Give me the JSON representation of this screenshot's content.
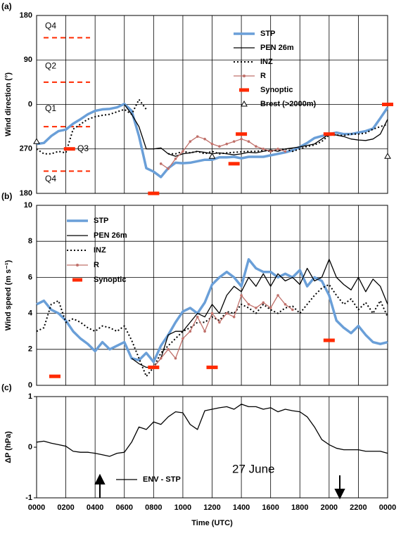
{
  "chart_data": [
    {
      "type": "line",
      "panel_label": "(a)",
      "ylabel": "Wind direction (°)",
      "ylim": [
        -180,
        180
      ],
      "yticks": [
        180,
        90,
        0,
        {
          "value": -90,
          "label": "270"
        },
        {
          "value": -180,
          "label": "180"
        }
      ],
      "hgrid": true,
      "legend": "top-right",
      "quadrants": {
        "color": "#ff2a00",
        "lines": [
          135,
          45,
          -45,
          -135
        ],
        "labels": [
          {
            "text": "Q4",
            "value": 158
          },
          {
            "text": "Q2",
            "value": 77
          },
          {
            "text": "Q1",
            "value": -9
          },
          {
            "text": "Q3",
            "value": -90
          },
          {
            "text": "Q4",
            "value": -151
          }
        ]
      },
      "series": [
        {
          "name": "STP",
          "color": "#6a9fd8",
          "width": 3.5,
          "dash": "solid",
          "x": [
            0,
            0.5,
            1,
            1.5,
            2,
            2.5,
            3,
            3.5,
            4,
            4.5,
            5,
            5.5,
            6,
            6.5,
            7,
            7.5,
            8,
            8.5,
            9,
            9.5,
            10,
            10.5,
            11,
            11.5,
            12,
            12.5,
            13,
            13.5,
            14,
            14.5,
            15,
            15.5,
            16,
            16.5,
            17,
            17.5,
            18,
            18.5,
            19,
            19.5,
            20,
            20.5,
            21,
            21.5,
            22,
            22.5,
            23,
            23.5,
            24
          ],
          "values": [
            -80,
            -78,
            -64,
            -54,
            -51,
            -39,
            -30,
            -20,
            -13,
            -10,
            -9,
            -6,
            1,
            -13,
            -64,
            -129,
            -136,
            -147,
            -129,
            -118,
            -119,
            -118,
            -115,
            -112,
            -112,
            -107,
            -107,
            -106,
            -109,
            -106,
            -106,
            -106,
            -103,
            -100,
            -97,
            -93,
            -86,
            -78,
            -68,
            -64,
            -60,
            -57,
            -60,
            -60,
            -57,
            -54,
            -49,
            -28,
            -6
          ]
        },
        {
          "name": "PEN 26m",
          "color": "#000000",
          "width": 1.3,
          "dash": "solid",
          "x": [
            6,
            6.5,
            7,
            7.5,
            8,
            8.5,
            9,
            9.5,
            10,
            10.5,
            11,
            11.5,
            12,
            12.5,
            13,
            13.5,
            14,
            14.5,
            15,
            15.5,
            16,
            16.5,
            17,
            17.5,
            18,
            18.5,
            19,
            19.5,
            20,
            20.5,
            21,
            21.5,
            22,
            22.5,
            23,
            23.5,
            24
          ],
          "values": [
            0,
            -20,
            -45,
            -90,
            -90,
            -88,
            -100,
            -105,
            -100,
            -98,
            -95,
            -97,
            -100,
            -98,
            -100,
            -102,
            -100,
            -97,
            -98,
            -95,
            -92,
            -95,
            -90,
            -88,
            -86,
            -83,
            -80,
            -70,
            -60,
            -62,
            -65,
            -70,
            -72,
            -73,
            -70,
            -60,
            -30
          ]
        },
        {
          "name": "INZ",
          "color": "#000000",
          "width": 2,
          "dash": "dotted",
          "x": [
            0,
            0.5,
            1,
            1.5,
            2,
            2.5,
            3,
            3.5,
            4,
            4.5,
            5,
            5.5,
            6,
            6.5,
            7,
            7.5,
            8,
            8.5,
            9,
            9.5,
            10,
            10.5,
            11,
            11.5,
            12,
            12.5,
            13,
            13.5,
            14,
            14.5,
            15,
            15.5,
            16,
            16.5,
            17,
            17.5,
            18,
            18.5,
            19,
            19.5,
            20,
            20.5,
            21,
            21.5,
            22,
            22.5,
            23,
            23.5,
            24
          ],
          "values": [
            -90,
            -100,
            -100,
            -95,
            -98,
            -50,
            -40,
            -30,
            -25,
            -22,
            -20,
            -15,
            -10,
            -20,
            10,
            -10,
            null,
            null,
            -100,
            -100,
            -95,
            -98,
            -95,
            -100,
            -95,
            -100,
            -98,
            -97,
            -96,
            -95,
            -95,
            -93,
            -95,
            -92,
            -90,
            -95,
            -90,
            -85,
            -82,
            -75,
            -62,
            -62,
            -63,
            -60,
            -60,
            -58,
            -50,
            -45,
            -40
          ]
        },
        {
          "name": "R",
          "color": "#c0706a",
          "width": 1.3,
          "dash": "solid",
          "marker": "dot",
          "x": [
            8.5,
            9,
            9.5,
            10,
            10.5,
            11,
            11.5,
            12,
            12.5,
            13,
            13.5,
            14,
            14.5,
            15,
            15.5,
            16,
            16.5,
            17
          ],
          "values": [
            -120,
            -130,
            -110,
            -95,
            -75,
            -65,
            -70,
            -80,
            -85,
            -80,
            -75,
            -70,
            -75,
            -85,
            -90,
            -95,
            -90,
            -95
          ]
        },
        {
          "name": "Synoptic",
          "color": "#ff2a00",
          "marker": "dash",
          "x": [
            2.25,
            8,
            13.5,
            14,
            20,
            24
          ],
          "values": [
            -90,
            -180,
            -120,
            -60,
            -60,
            0
          ]
        },
        {
          "name": "Brest (>2000m)",
          "color": "#000000",
          "marker": "triangle",
          "x": [
            0,
            12,
            24
          ],
          "values": [
            -75,
            -105,
            -105
          ]
        }
      ]
    },
    {
      "type": "line",
      "panel_label": "(b)",
      "ylabel": "Wind speed (m s⁻¹)",
      "ylim": [
        0,
        10
      ],
      "yticks": [
        0,
        2,
        4,
        6,
        8,
        10
      ],
      "hgrid": true,
      "legend": "top-left",
      "series": [
        {
          "name": "STP",
          "color": "#6a9fd8",
          "width": 3.5,
          "dash": "solid",
          "x": [
            0,
            0.5,
            1,
            1.5,
            2,
            2.5,
            3,
            3.5,
            4,
            4.5,
            5,
            5.5,
            6,
            6.5,
            7,
            7.5,
            8,
            8.5,
            9,
            9.5,
            10,
            10.5,
            11,
            11.5,
            12,
            12.5,
            13,
            13.5,
            14,
            14.5,
            15,
            15.5,
            16,
            16.5,
            17,
            17.5,
            18,
            18.5,
            19,
            19.5,
            20,
            20.5,
            21,
            21.5,
            22,
            22.5,
            23,
            23.5,
            24
          ],
          "values": [
            4.5,
            4.7,
            4.2,
            4.0,
            3.6,
            3.0,
            2.6,
            2.3,
            1.9,
            2.4,
            2.0,
            2.2,
            2.4,
            1.5,
            1.4,
            1.8,
            1.3,
            2.2,
            2.8,
            3.5,
            4.1,
            4.3,
            4.0,
            4.6,
            5.6,
            6.0,
            6.3,
            6.0,
            5.5,
            7.0,
            6.5,
            6.3,
            6.3,
            6.0,
            6.2,
            6.0,
            6.4,
            5.5,
            6.0,
            5.8,
            5.0,
            3.6,
            3.2,
            2.9,
            3.3,
            2.8,
            2.4,
            2.3,
            2.4
          ]
        },
        {
          "name": "PEN 26m",
          "color": "#000000",
          "width": 1.3,
          "dash": "solid",
          "x": [
            6.5,
            7,
            7.5,
            8,
            8.5,
            9,
            9.5,
            10,
            10.5,
            11,
            11.5,
            12,
            12.5,
            13,
            13.5,
            14,
            14.5,
            15,
            15.5,
            16,
            16.5,
            17,
            17.5,
            18,
            18.5,
            19,
            19.5,
            20,
            20.5,
            21,
            21.5,
            22,
            22.5,
            23,
            23.5,
            24
          ],
          "values": [
            1.5,
            1.2,
            1.0,
            1.0,
            1.5,
            2.8,
            3.0,
            3.0,
            3.5,
            4.0,
            3.8,
            4.5,
            4.0,
            5.0,
            5.5,
            5.2,
            6.0,
            5.5,
            6.2,
            5.5,
            6.2,
            5.8,
            6.0,
            5.6,
            6.5,
            5.8,
            6.0,
            7.0,
            6.0,
            5.6,
            5.3,
            6.0,
            5.2,
            5.9,
            5.5,
            4.5
          ]
        },
        {
          "name": "INZ",
          "color": "#000000",
          "width": 2,
          "dash": "dotted",
          "x": [
            0,
            0.5,
            1,
            1.5,
            2,
            2.5,
            3,
            3.5,
            4,
            4.5,
            5,
            5.5,
            6,
            6.5,
            7,
            7.5,
            8,
            8.5,
            9,
            9.5,
            10,
            10.5,
            11,
            11.5,
            12,
            12.5,
            13,
            13.5,
            14,
            14.5,
            15,
            15.5,
            16,
            16.5,
            17,
            17.5,
            18,
            18.5,
            19,
            19.5,
            20,
            20.5,
            21,
            21.5,
            22,
            22.5,
            23,
            23.5,
            24
          ],
          "values": [
            3.0,
            3.2,
            4.5,
            4.7,
            3.5,
            3.7,
            3.5,
            3.2,
            3.0,
            3.3,
            3.2,
            3.0,
            3.3,
            2.5,
            1.5,
            0.5,
            1.0,
            1.8,
            2.2,
            2.6,
            3.0,
            3.2,
            3.5,
            3.5,
            3.8,
            3.6,
            4.1,
            4.0,
            4.5,
            4.3,
            4.0,
            4.5,
            4.2,
            4.0,
            4.3,
            4.4,
            4.0,
            4.5,
            5.0,
            5.4,
            5.6,
            5.0,
            4.5,
            4.8,
            4.2,
            4.6,
            4.0,
            4.7,
            3.8
          ]
        },
        {
          "name": "R",
          "color": "#c0706a",
          "width": 1.3,
          "dash": "solid",
          "marker": "dot",
          "x": [
            8,
            8.5,
            9,
            9.5,
            10,
            10.5,
            11,
            11.5,
            12,
            12.5,
            13,
            13.5,
            14,
            14.5,
            15,
            15.5,
            16,
            16.5,
            17,
            17.5
          ],
          "values": [
            1.0,
            1.5,
            2.0,
            1.5,
            2.6,
            3.0,
            3.8,
            3.0,
            4.0,
            3.5,
            4.0,
            3.8,
            5.0,
            4.5,
            4.3,
            4.6,
            4.3,
            5.0,
            4.5,
            4.2
          ]
        },
        {
          "name": "Synoptic",
          "color": "#ff2a00",
          "marker": "dash",
          "x": [
            1.25,
            8,
            12,
            20
          ],
          "values": [
            0.5,
            1.0,
            1.0,
            2.5
          ]
        }
      ]
    },
    {
      "type": "line",
      "panel_label": "(c)",
      "ylabel": "ΔP (hPa)",
      "xlabel": "Time (UTC)",
      "annotation": "27 June",
      "xlim": [
        0,
        24
      ],
      "xticks": [
        {
          "value": 0,
          "label": "0000"
        },
        {
          "value": 2,
          "label": "0200"
        },
        {
          "value": 4,
          "label": "0400"
        },
        {
          "value": 6,
          "label": "0600"
        },
        {
          "value": 8,
          "label": "0800"
        },
        {
          "value": 10,
          "label": "1000"
        },
        {
          "value": 12,
          "label": "1200"
        },
        {
          "value": 14,
          "label": "1400"
        },
        {
          "value": 16,
          "label": "1600"
        },
        {
          "value": 18,
          "label": "1800"
        },
        {
          "value": 20,
          "label": "2000"
        },
        {
          "value": 22,
          "label": "2200"
        },
        {
          "value": 24,
          "label": "0000"
        }
      ],
      "ylim": [
        -1,
        1
      ],
      "yticks": [
        1,
        0,
        -1
      ],
      "hgrid": false,
      "legend": "bottom-left",
      "series": [
        {
          "name": "ENV - STP",
          "color": "#000000",
          "width": 1.3,
          "dash": "solid",
          "x": [
            0,
            0.5,
            1,
            1.5,
            2,
            2.5,
            3,
            3.5,
            4,
            4.5,
            5,
            5.5,
            6,
            6.5,
            7,
            7.5,
            8,
            8.5,
            9,
            9.5,
            10,
            10.5,
            11,
            11.5,
            12,
            12.5,
            13,
            13.5,
            14,
            14.5,
            15,
            15.5,
            16,
            16.5,
            17,
            17.5,
            18,
            18.5,
            19,
            19.5,
            20,
            20.5,
            21,
            21.5,
            22,
            22.5,
            23,
            23.5,
            24
          ],
          "values": [
            0.1,
            0.12,
            0.08,
            0.05,
            0.02,
            -0.08,
            -0.1,
            -0.1,
            -0.12,
            -0.15,
            -0.18,
            -0.12,
            -0.1,
            0.1,
            0.4,
            0.35,
            0.5,
            0.45,
            0.6,
            0.7,
            0.68,
            0.45,
            0.35,
            0.72,
            0.75,
            0.78,
            0.8,
            0.75,
            0.85,
            0.8,
            0.8,
            0.75,
            0.78,
            0.7,
            0.75,
            0.72,
            0.7,
            0.6,
            0.4,
            0.15,
            0.05,
            -0.02,
            -0.05,
            -0.05,
            -0.05,
            -0.08,
            -0.08,
            -0.08,
            -0.12
          ]
        }
      ]
    }
  ]
}
